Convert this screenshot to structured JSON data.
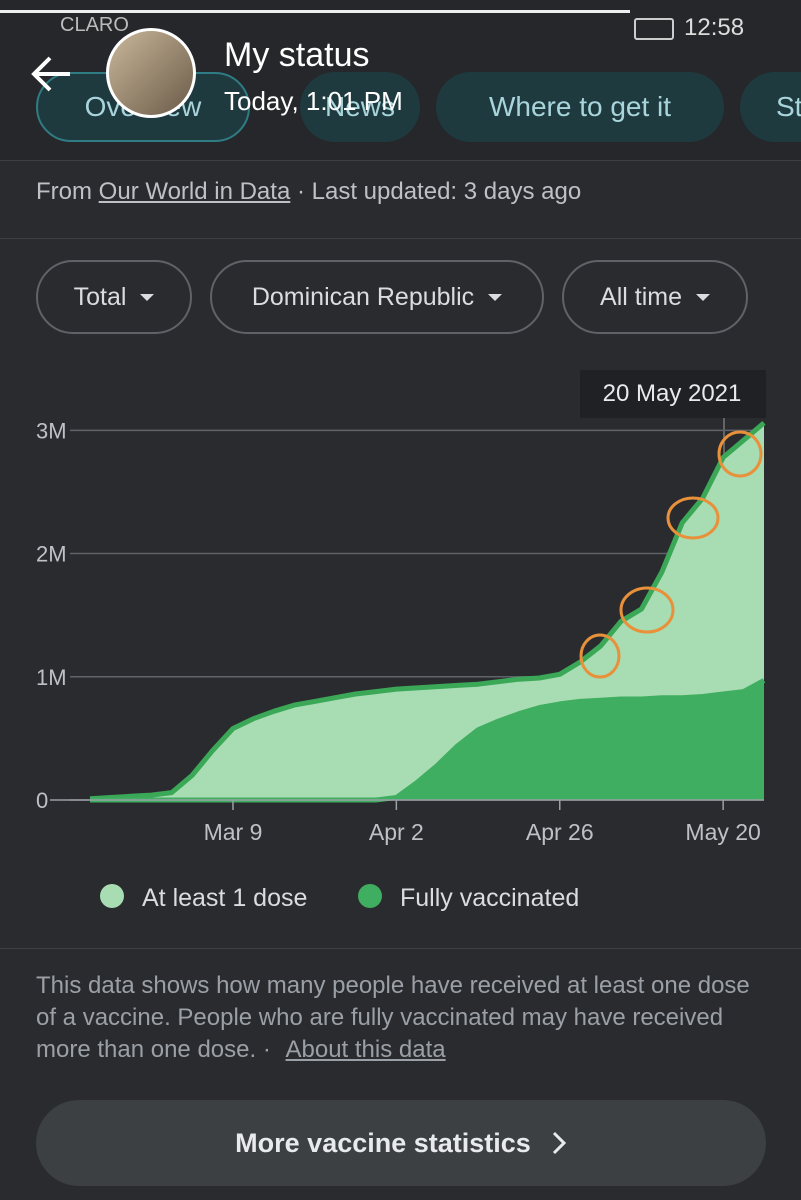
{
  "status_bar": {
    "carrier": "CLARO",
    "time": "12:58"
  },
  "header": {
    "title": "My status",
    "subtitle": "Today, 1:01 PM"
  },
  "tabs": [
    "Overview",
    "News",
    "Where to get it",
    "St"
  ],
  "source": {
    "prefix": "From",
    "link": "Our World in Data",
    "suffix": "· Last updated: 3 days ago"
  },
  "filters": [
    "Total",
    "Dominican Republic",
    "All time"
  ],
  "chart_data": {
    "type": "area",
    "tooltip": "20 May 2021",
    "categories": [
      null,
      null,
      null,
      null,
      null,
      null,
      null,
      "Mar 9",
      null,
      null,
      null,
      null,
      null,
      null,
      null,
      "Apr 2",
      null,
      null,
      null,
      null,
      null,
      null,
      null,
      "Apr 26",
      null,
      null,
      null,
      null,
      null,
      null,
      null,
      "May 20",
      null,
      null
    ],
    "series": [
      {
        "name": "At least 1 dose",
        "color": "#a8dcb2",
        "line_color": "#3aa857",
        "values": [
          10000,
          20000,
          30000,
          40000,
          60000,
          200000,
          400000,
          580000,
          660000,
          720000,
          770000,
          800000,
          830000,
          860000,
          880000,
          900000,
          910000,
          920000,
          930000,
          940000,
          960000,
          980000,
          990000,
          1020000,
          1120000,
          1250000,
          1450000,
          1550000,
          1850000,
          2250000,
          2450000,
          2780000,
          2920000,
          3060000
        ]
      },
      {
        "name": "Fully vaccinated",
        "color": "#3fae60",
        "line_color": "#3fae60",
        "values": [
          0,
          0,
          0,
          0,
          0,
          0,
          0,
          0,
          0,
          0,
          0,
          0,
          0,
          0,
          0,
          20000,
          140000,
          280000,
          440000,
          570000,
          640000,
          700000,
          750000,
          780000,
          800000,
          810000,
          820000,
          820000,
          830000,
          830000,
          840000,
          860000,
          880000,
          970000
        ]
      }
    ],
    "ylim": [
      0,
      3100000
    ],
    "yticks": [
      0,
      {
        "value": 1000000,
        "label": "1M"
      },
      {
        "value": 2000000,
        "label": "2M"
      },
      {
        "value": 3000000,
        "label": "3M"
      }
    ],
    "grid": true
  },
  "description": {
    "text": "This data shows how many people have received at least one dose of a vaccine. People who are fully vaccinated may have received more than one dose. ·",
    "link": "About this data"
  },
  "button": "More vaccine statistics"
}
